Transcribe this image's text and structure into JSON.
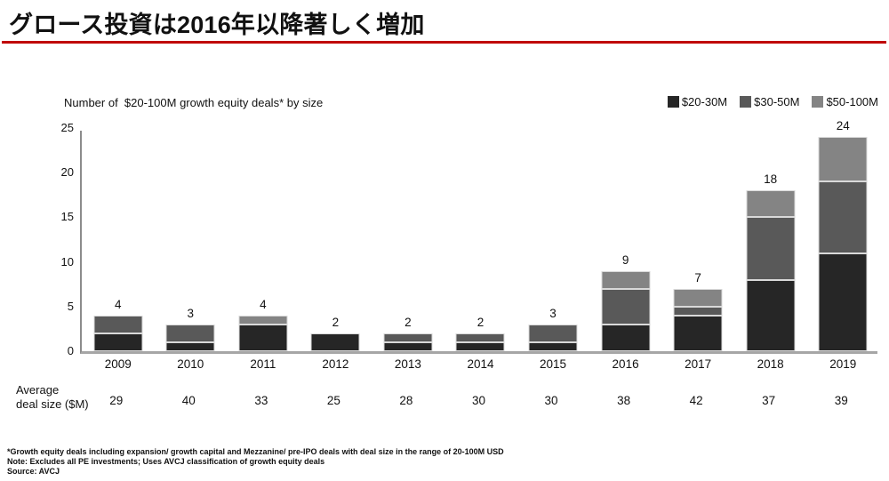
{
  "header": {
    "title": "グロース投資は2016年以降著しく増加",
    "rule_color": "#C00000"
  },
  "chart_data": {
    "type": "bar",
    "stacked": true,
    "title": "Number of  $20-100M growth equity deals* by size",
    "categories": [
      "2009",
      "2010",
      "2011",
      "2012",
      "2013",
      "2014",
      "2015",
      "2016",
      "2017",
      "2018",
      "2019"
    ],
    "series": [
      {
        "name": "$20-30M",
        "color": "#262626",
        "values": [
          2,
          1,
          3,
          2,
          1,
          1,
          1,
          3,
          4,
          8,
          11
        ]
      },
      {
        "name": "$30-50M",
        "color": "#595959",
        "values": [
          2,
          2,
          0,
          0,
          1,
          1,
          2,
          4,
          1,
          7,
          8
        ]
      },
      {
        "name": "$50-100M",
        "color": "#848484",
        "values": [
          0,
          0,
          1,
          0,
          0,
          0,
          0,
          2,
          2,
          3,
          5
        ]
      }
    ],
    "totals": [
      4,
      3,
      4,
      2,
      2,
      2,
      3,
      9,
      7,
      18,
      24
    ],
    "ylim": [
      0,
      25
    ],
    "yticks": [
      0,
      5,
      10,
      15,
      20,
      25
    ],
    "grid": false,
    "legend_position": "top-right"
  },
  "average_row": {
    "label": "Average\ndeal size ($M)",
    "values": [
      "29",
      "40",
      "33",
      "25",
      "28",
      "30",
      "30",
      "38",
      "42",
      "37",
      "39"
    ]
  },
  "footnotes": {
    "line1": "*Growth equity deals including expansion/ growth capital and Mezzanine/ pre-IPO deals with deal size in the range of 20-100M USD",
    "line2": "Note: Excludes all PE investments; Uses AVCJ classification of growth equity deals",
    "line3": "Source: AVCJ"
  }
}
